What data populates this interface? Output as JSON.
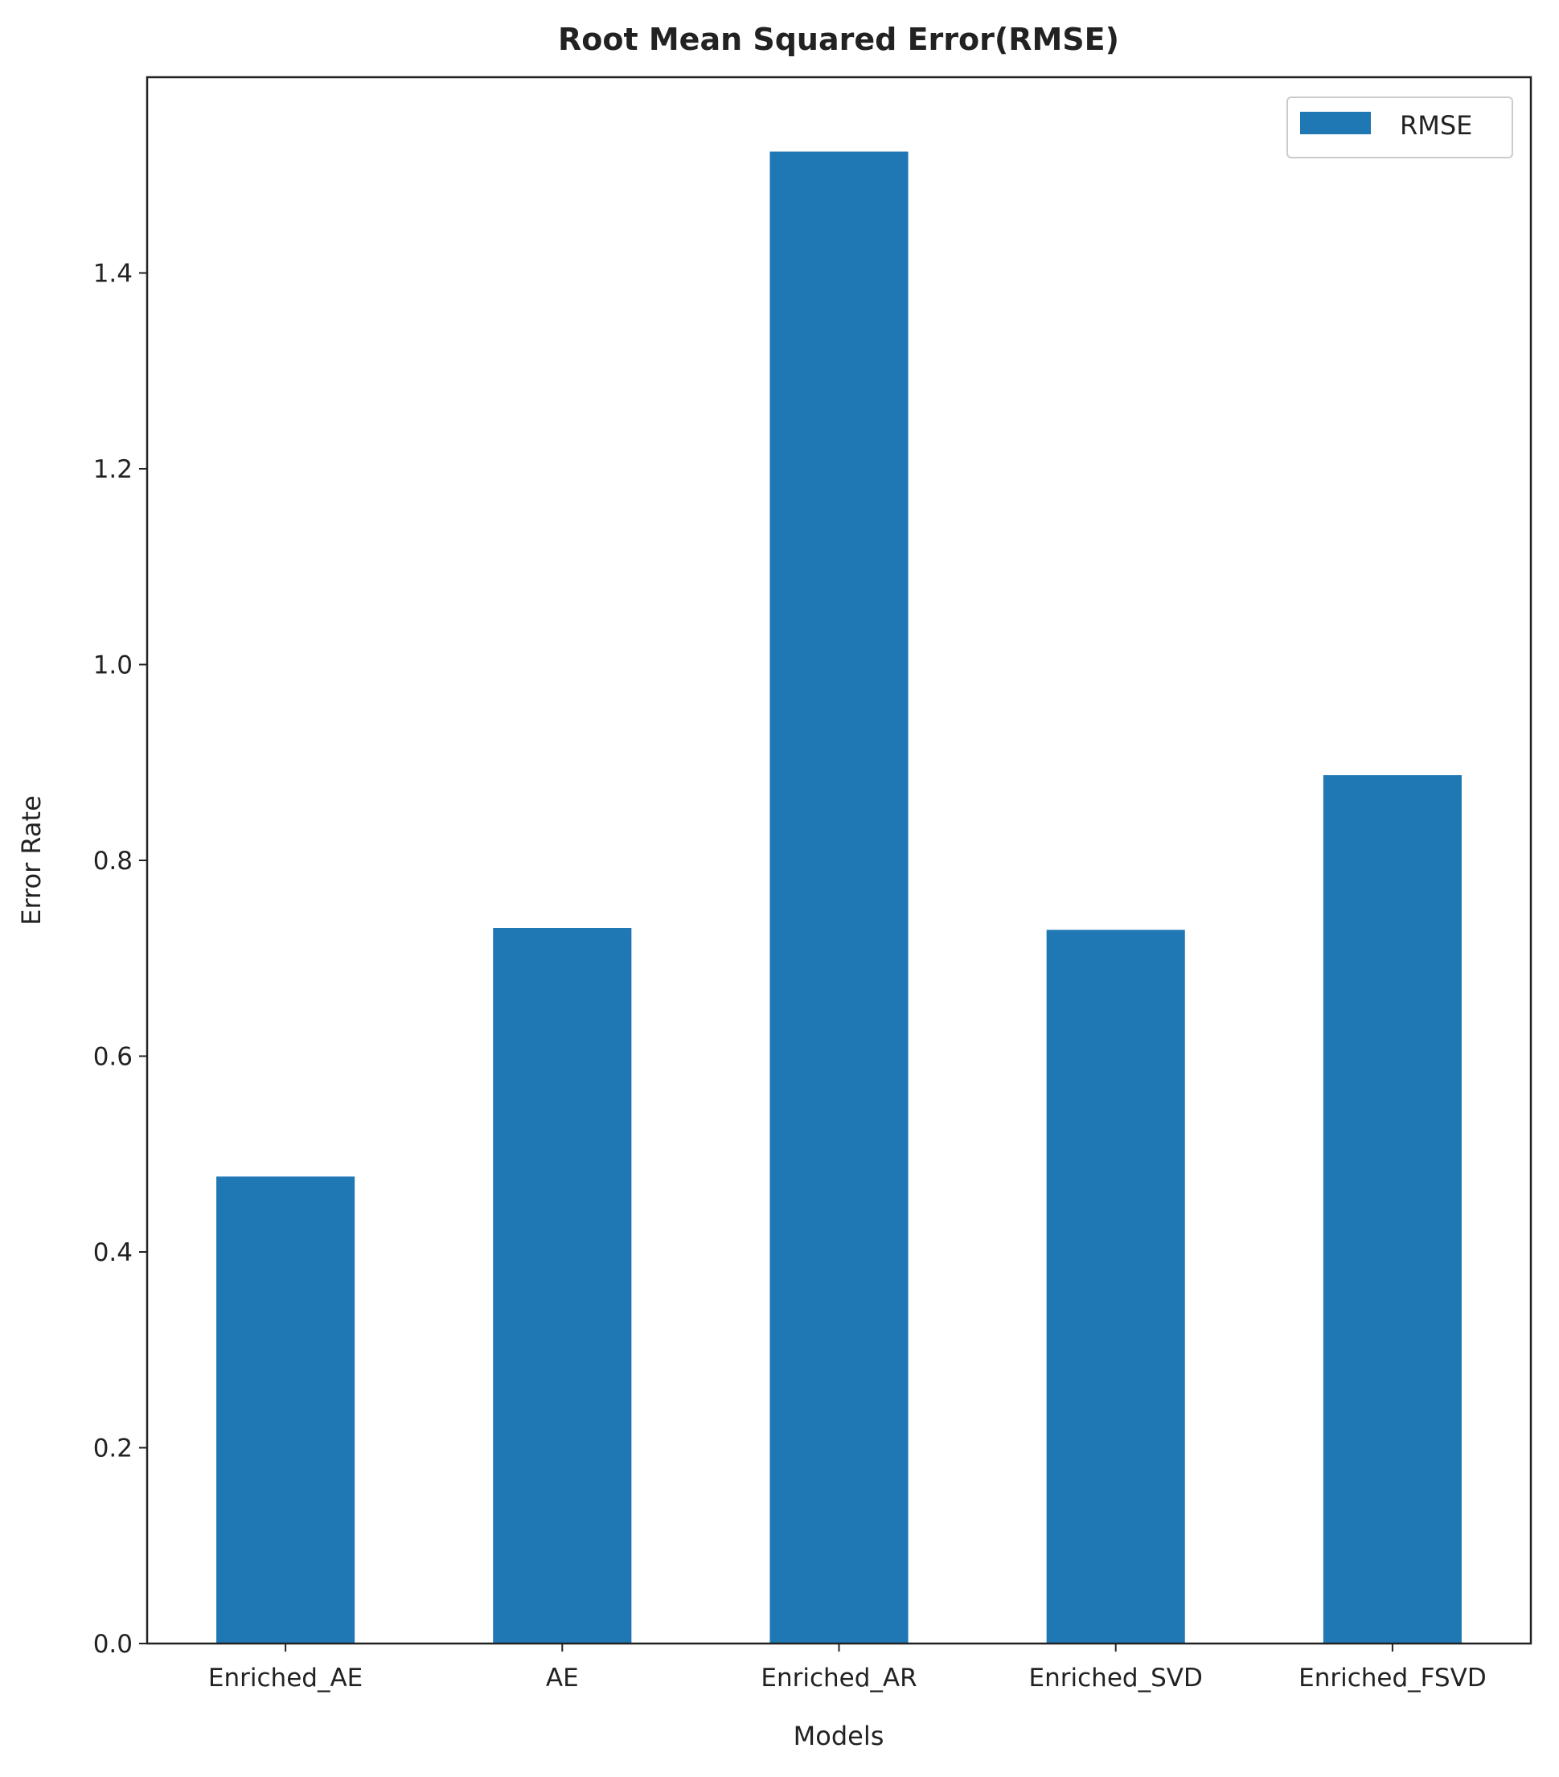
{
  "chart_data": {
    "type": "bar",
    "title": "Root Mean Squared Error(RMSE)",
    "xlabel": "Models",
    "ylabel": "Error Rate",
    "categories": [
      "Enriched_AE",
      "AE",
      "Enriched_AR",
      "Enriched_SVD",
      "Enriched_FSVD"
    ],
    "series": [
      {
        "name": "RMSE",
        "values": [
          0.477,
          0.731,
          1.524,
          0.729,
          0.887
        ],
        "color": "#1f77b4"
      }
    ],
    "ylim": [
      0,
      1.6
    ],
    "yticks": [
      "0.0",
      "0.2",
      "0.4",
      "0.6",
      "0.8",
      "1.0",
      "1.2",
      "1.4"
    ],
    "grid": false,
    "legend_position": "top-right"
  }
}
